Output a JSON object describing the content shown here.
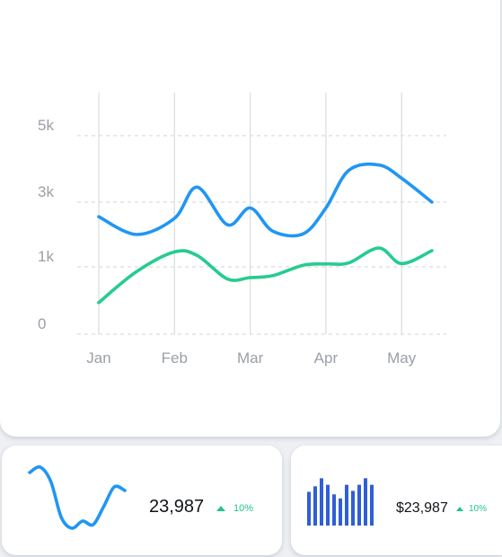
{
  "colors": {
    "series_blue": "#2196f3",
    "series_green": "#26cc8f",
    "bar_blue": "#2f5fd6",
    "grid": "#d9dce0",
    "change_positive": "#22c48a"
  },
  "chart_data": {
    "type": "line",
    "x": [
      0.0,
      0.5,
      1.0,
      1.3,
      1.7,
      2.0,
      2.3,
      2.7,
      3.0,
      3.3,
      3.7,
      4.0,
      4.4
    ],
    "xtick_labels": [
      "Jan",
      "Feb",
      "Mar",
      "Apr",
      "May"
    ],
    "ytick_labels": [
      "0",
      "1k",
      "3k",
      "5k"
    ],
    "ylim": [
      0,
      5000
    ],
    "grid": "dashed horizontal, solid vertical",
    "series": [
      {
        "color": "#2196f3",
        "values": [
          2550,
          2000,
          2500,
          3450,
          2300,
          2820,
          2100,
          2020,
          2820,
          3950,
          4120,
          3720,
          3000
        ]
      },
      {
        "color": "#26cc8f",
        "values": [
          470,
          930,
          1460,
          1350,
          820,
          840,
          870,
          1050,
          1090,
          1120,
          1580,
          1100,
          1500
        ]
      }
    ]
  },
  "stat_1": {
    "value": "23,987",
    "change": "10%",
    "sparkline": [
      68,
      74,
      58,
      18,
      6,
      14,
      10,
      30,
      52,
      48
    ]
  },
  "stat_2": {
    "value": "$23,987",
    "change": "10%",
    "bars": [
      67,
      78,
      94,
      81,
      62,
      54,
      81,
      69,
      81,
      94,
      81
    ]
  }
}
